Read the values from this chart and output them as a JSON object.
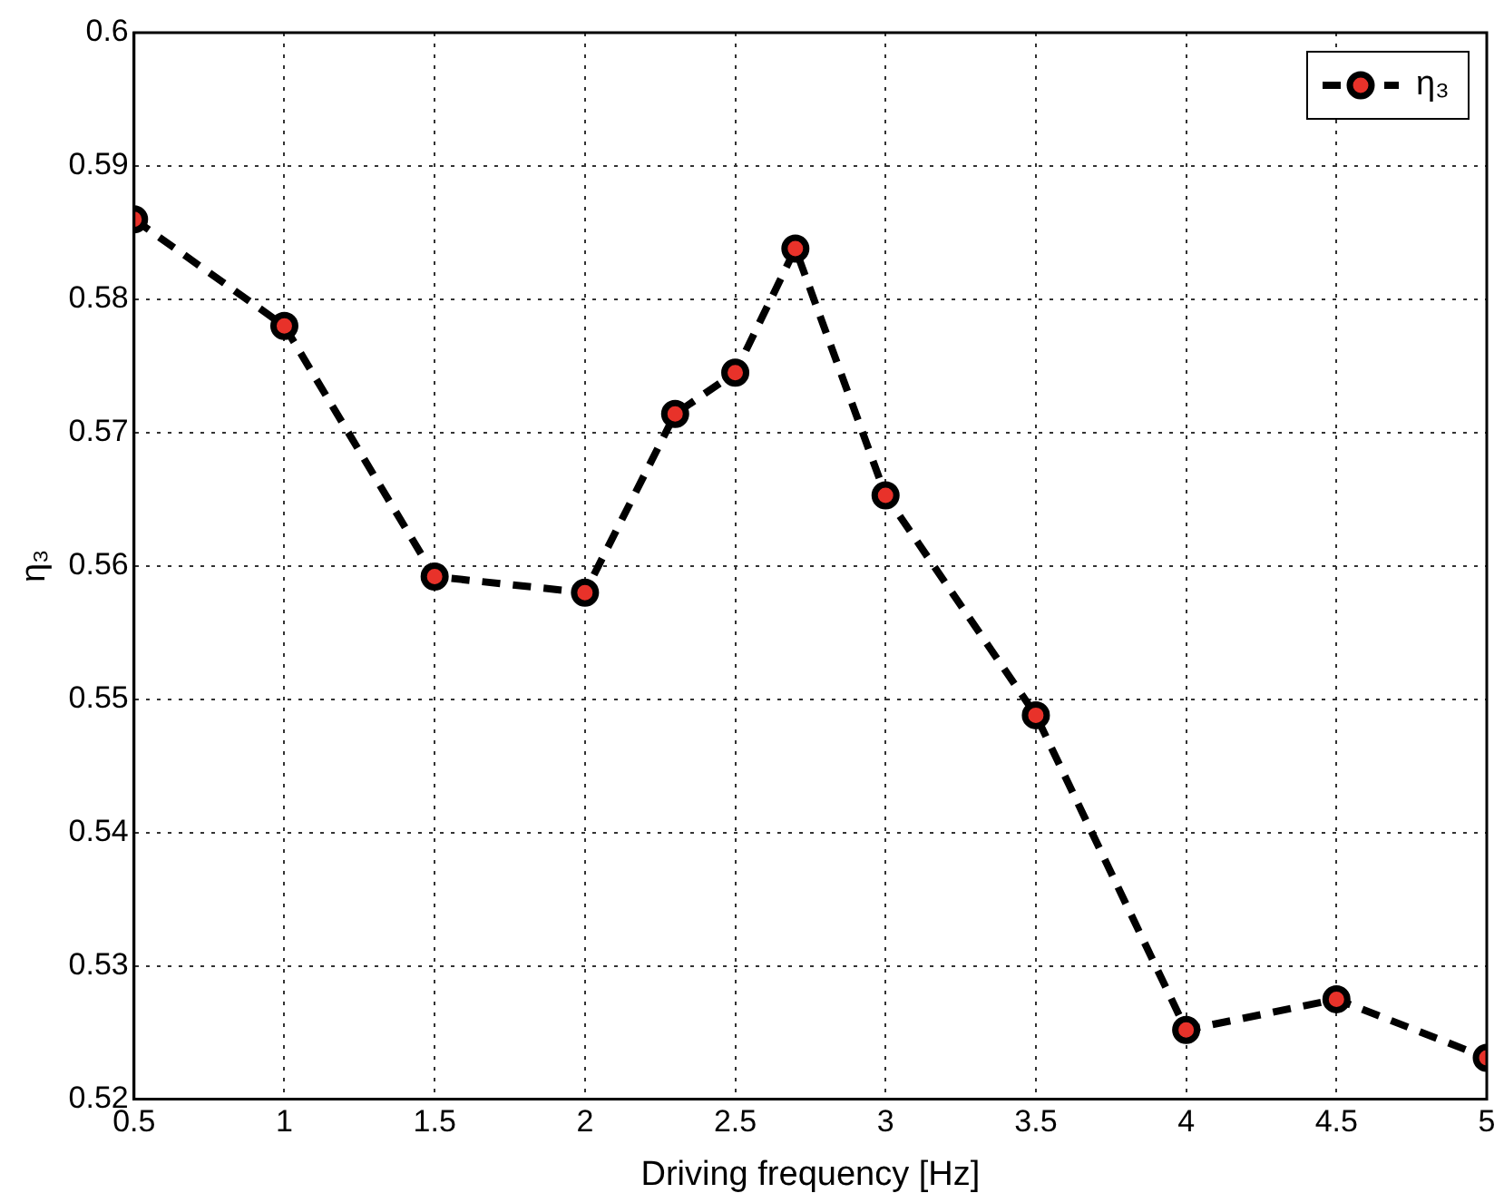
{
  "chart_data": {
    "type": "line",
    "xlabel": "Driving frequency [Hz]",
    "ylabel": "η₃",
    "x": [
      0.5,
      1,
      1.5,
      2,
      2.3,
      2.5,
      2.7,
      3,
      3.5,
      4,
      4.5,
      5
    ],
    "series": [
      {
        "name": "η₃",
        "color": "#000000",
        "values": [
          0.586,
          0.578,
          0.5592,
          0.558,
          0.5714,
          0.5745,
          0.5838,
          0.5653,
          0.5488,
          0.5252,
          0.5275,
          0.5231
        ]
      }
    ],
    "xlim": [
      0.5,
      5
    ],
    "xticks": [
      0.5,
      1,
      1.5,
      2,
      2.5,
      3,
      3.5,
      4,
      4.5,
      5
    ],
    "ylim": [
      0.52,
      0.6
    ],
    "yticks": [
      0.52,
      0.53,
      0.54,
      0.55,
      0.56,
      0.57,
      0.58,
      0.59,
      0.6
    ],
    "grid": true,
    "legend": "top right",
    "marker": "circle",
    "line_style": "dashed"
  }
}
